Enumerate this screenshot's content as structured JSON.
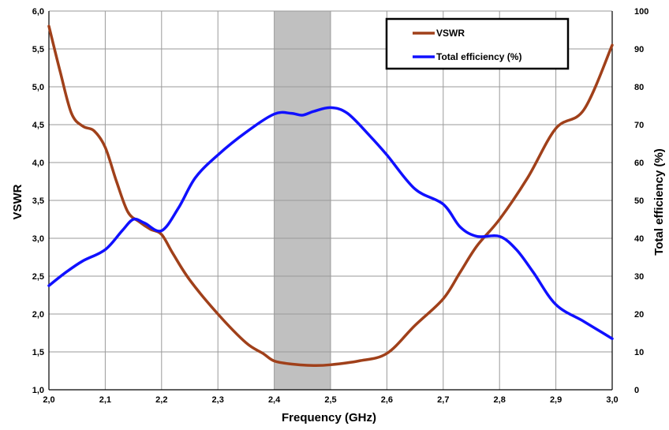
{
  "chart_data": {
    "type": "line",
    "xlabel": "Frequency (GHz)",
    "ylabel": "VSWR",
    "y2label": "Total efficiency (%)",
    "xlim": [
      2.0,
      3.0
    ],
    "ylim": [
      1.0,
      6.0
    ],
    "y2lim": [
      0,
      100
    ],
    "grid": true,
    "legend_position": "top-right",
    "x_ticks": [
      "2,0",
      "2,1",
      "2,2",
      "2,3",
      "2,4",
      "2,5",
      "2,6",
      "2,7",
      "2,8",
      "2,9",
      "3,0"
    ],
    "y_ticks": [
      "1,0",
      "1,5",
      "2,0",
      "2,5",
      "3,0",
      "3,5",
      "4,0",
      "4,5",
      "5,0",
      "5,5",
      "6,0"
    ],
    "y2_ticks": [
      "0",
      "10",
      "20",
      "30",
      "40",
      "50",
      "60",
      "70",
      "80",
      "90",
      "100"
    ],
    "highlight_band": {
      "from": 2.4,
      "to": 2.5,
      "color": "#c0c0c0"
    },
    "series": [
      {
        "name": "VSWR",
        "axis": "left",
        "color": "#a0401a",
        "x": [
          2.0,
          2.02,
          2.04,
          2.06,
          2.08,
          2.1,
          2.12,
          2.14,
          2.16,
          2.18,
          2.2,
          2.22,
          2.25,
          2.3,
          2.35,
          2.38,
          2.4,
          2.43,
          2.47,
          2.5,
          2.55,
          2.6,
          2.65,
          2.7,
          2.73,
          2.76,
          2.8,
          2.85,
          2.9,
          2.95,
          3.0
        ],
        "values": [
          5.8,
          5.2,
          4.65,
          4.48,
          4.42,
          4.2,
          3.75,
          3.35,
          3.22,
          3.12,
          3.05,
          2.8,
          2.45,
          2.0,
          1.62,
          1.48,
          1.38,
          1.34,
          1.32,
          1.33,
          1.38,
          1.48,
          1.85,
          2.2,
          2.55,
          2.9,
          3.25,
          3.8,
          4.45,
          4.7,
          5.55
        ]
      },
      {
        "name": "Total efficiency (%)",
        "axis": "right",
        "color": "#1010ff",
        "x": [
          2.0,
          2.03,
          2.06,
          2.1,
          2.13,
          2.15,
          2.17,
          2.2,
          2.23,
          2.26,
          2.3,
          2.35,
          2.4,
          2.43,
          2.45,
          2.47,
          2.5,
          2.53,
          2.57,
          2.6,
          2.65,
          2.7,
          2.73,
          2.76,
          2.8,
          2.83,
          2.86,
          2.9,
          2.95,
          3.0
        ],
        "values": [
          27.5,
          31,
          34,
          37,
          42,
          45,
          44,
          42,
          48,
          56,
          62,
          68,
          72.8,
          73,
          72.5,
          73.5,
          74.5,
          73,
          67,
          62,
          53,
          49,
          43,
          40.5,
          40.5,
          37,
          31,
          22.5,
          18,
          13.5
        ]
      }
    ]
  }
}
